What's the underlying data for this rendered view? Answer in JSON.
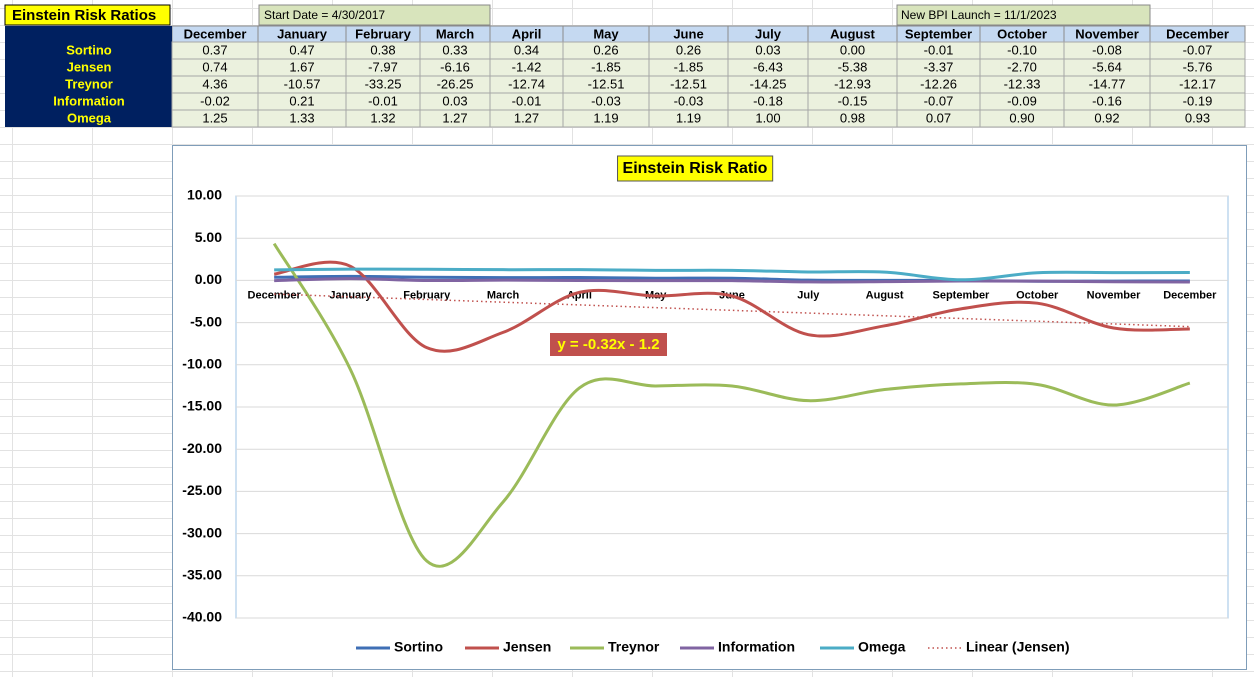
{
  "sheet": {
    "title": "Einstein Risk Ratios",
    "start_date": "Start Date = 4/30/2017",
    "launch": "New BPI Launch = 11/1/2023",
    "columns": [
      "December",
      "January",
      "February",
      "March",
      "April",
      "May",
      "June",
      "July",
      "August",
      "September",
      "October",
      "November",
      "December"
    ],
    "rows": [
      {
        "label": "Sortino",
        "values": [
          "0.37",
          "0.47",
          "0.38",
          "0.33",
          "0.34",
          "0.26",
          "0.26",
          "0.03",
          "0.00",
          "-0.01",
          "-0.10",
          "-0.08",
          "-0.07"
        ]
      },
      {
        "label": "Jensen",
        "values": [
          "0.74",
          "1.67",
          "-7.97",
          "-6.16",
          "-1.42",
          "-1.85",
          "-1.85",
          "-6.43",
          "-5.38",
          "-3.37",
          "-2.70",
          "-5.64",
          "-5.76"
        ]
      },
      {
        "label": "Treynor",
        "values": [
          "4.36",
          "-10.57",
          "-33.25",
          "-26.25",
          "-12.74",
          "-12.51",
          "-12.51",
          "-14.25",
          "-12.93",
          "-12.26",
          "-12.33",
          "-14.77",
          "-12.17"
        ]
      },
      {
        "label": "Information",
        "values": [
          "-0.02",
          "0.21",
          "-0.01",
          "0.03",
          "-0.01",
          "-0.03",
          "-0.03",
          "-0.18",
          "-0.15",
          "-0.07",
          "-0.09",
          "-0.16",
          "-0.19"
        ]
      },
      {
        "label": "Omega",
        "values": [
          "1.25",
          "1.33",
          "1.32",
          "1.27",
          "1.27",
          "1.19",
          "1.19",
          "1.00",
          "0.98",
          "0.07",
          "0.90",
          "0.92",
          "0.93"
        ]
      }
    ]
  },
  "chart_data": {
    "type": "line",
    "title": "Einstein Risk Ratio",
    "smooth": true,
    "grid": true,
    "categories": [
      "December",
      "January",
      "February",
      "March",
      "April",
      "May",
      "June",
      "July",
      "August",
      "September",
      "October",
      "November",
      "December"
    ],
    "series": [
      {
        "name": "Sortino",
        "color": "#3f6fb5",
        "values": [
          0.37,
          0.47,
          0.38,
          0.33,
          0.34,
          0.26,
          0.26,
          0.03,
          0.0,
          -0.01,
          -0.1,
          -0.08,
          -0.07
        ]
      },
      {
        "name": "Jensen",
        "color": "#c0504d",
        "values": [
          0.74,
          1.67,
          -7.97,
          -6.16,
          -1.42,
          -1.85,
          -1.85,
          -6.43,
          -5.38,
          -3.37,
          -2.7,
          -5.64,
          -5.76
        ]
      },
      {
        "name": "Treynor",
        "color": "#9bbb59",
        "values": [
          4.36,
          -10.57,
          -33.25,
          -26.25,
          -12.74,
          -12.51,
          -12.51,
          -14.25,
          -12.93,
          -12.26,
          -12.33,
          -14.77,
          -12.17
        ]
      },
      {
        "name": "Information",
        "color": "#8064a2",
        "values": [
          -0.02,
          0.21,
          -0.01,
          0.03,
          -0.01,
          -0.03,
          -0.03,
          -0.18,
          -0.15,
          -0.07,
          -0.09,
          -0.16,
          -0.19
        ]
      },
      {
        "name": "Omega",
        "color": "#4bacc6",
        "values": [
          1.25,
          1.33,
          1.32,
          1.27,
          1.27,
          1.19,
          1.19,
          1.0,
          0.98,
          0.07,
          0.9,
          0.92,
          0.93
        ]
      }
    ],
    "trendline": {
      "name": "Linear (Jensen)",
      "series": 1,
      "color": "#c0504d",
      "equation": "y = -0.32x - 1.2"
    },
    "ylim": [
      -40,
      10
    ],
    "yticks": [
      {
        "value": -40,
        "label": "-40.00"
      },
      {
        "value": -35,
        "label": "-35.00"
      },
      {
        "value": -30,
        "label": "-30.00"
      },
      {
        "value": -25,
        "label": "-25.00"
      },
      {
        "value": -20,
        "label": "-20.00"
      },
      {
        "value": -15,
        "label": "-15.00"
      },
      {
        "value": -10,
        "label": "-10.00"
      },
      {
        "value": -5,
        "label": "-5.00"
      },
      {
        "value": 0,
        "label": "0.00"
      },
      {
        "value": 5,
        "label": "5.00"
      },
      {
        "value": 10,
        "label": "10.00"
      }
    ],
    "legend": "bottom"
  }
}
